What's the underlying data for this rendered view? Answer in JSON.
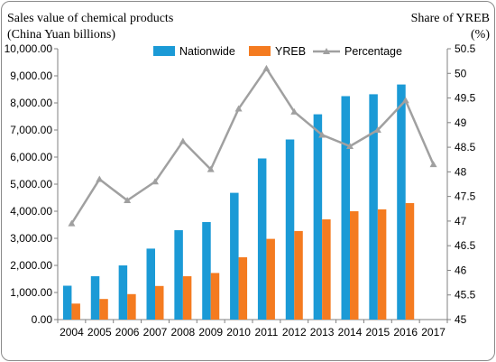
{
  "chart_data": {
    "type": "bar",
    "left_axis_title_line1": "Sales value of chemical products",
    "left_axis_title_line2": "(China Yuan billions)",
    "right_axis_title_line1": "Share of YREB",
    "right_axis_title_line2": "(%)",
    "categories": [
      "2004",
      "2005",
      "2006",
      "2007",
      "2008",
      "2009",
      "2010",
      "2011",
      "2012",
      "2013",
      "2014",
      "2015",
      "2016",
      "2017"
    ],
    "left_axis": {
      "min": 0,
      "max": 10000,
      "step": 1000,
      "tick_labels": [
        "0.00",
        "1,000.00",
        "2,000.00",
        "3,000.00",
        "4,000.00",
        "5,000.00",
        "6,000.00",
        "7,000.00",
        "8,000.00",
        "9,000.00",
        "10,000.00"
      ]
    },
    "right_axis": {
      "min": 45,
      "max": 50.5,
      "step": 0.5,
      "tick_labels": [
        "45",
        "45.5",
        "46",
        "46.5",
        "47",
        "47.5",
        "48",
        "48.5",
        "49",
        "49.5",
        "50",
        "50.5"
      ]
    },
    "series": [
      {
        "name": "Nationwide",
        "kind": "bar",
        "axis": "left",
        "color": "#1b9ad6",
        "values": [
          1250,
          1600,
          2000,
          2620,
          3300,
          3600,
          4680,
          5950,
          6650,
          7580,
          8250,
          8320,
          8680,
          null
        ]
      },
      {
        "name": "YREB",
        "kind": "bar",
        "axis": "left",
        "color": "#f47b20",
        "values": [
          590,
          760,
          940,
          1240,
          1600,
          1720,
          2300,
          2980,
          3270,
          3700,
          4000,
          4070,
          4300,
          null
        ]
      },
      {
        "name": "Percentage",
        "kind": "line",
        "axis": "right",
        "color": "#a0a0a0",
        "values": [
          46.95,
          47.85,
          47.42,
          47.8,
          48.62,
          48.05,
          49.28,
          50.1,
          49.22,
          48.75,
          48.52,
          48.85,
          49.45,
          48.15
        ]
      }
    ],
    "legend_position": "top",
    "grid": false
  }
}
